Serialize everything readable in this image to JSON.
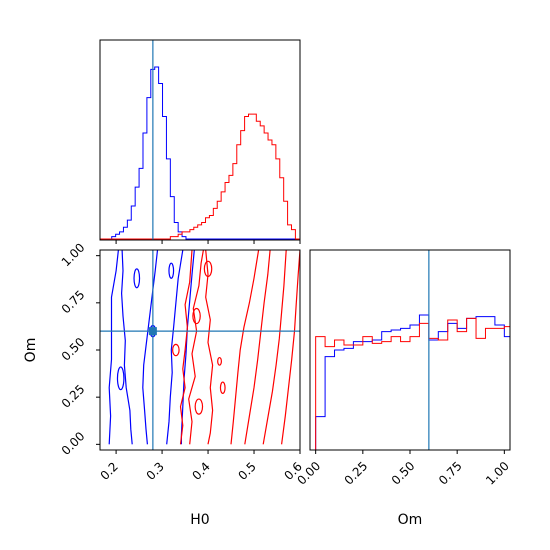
{
  "chart_data": {
    "type": "corner",
    "truth": {
      "H0": 0.28,
      "Om": 0.6
    },
    "series": [
      {
        "color": "#0000ff"
      },
      {
        "color": "#ff0000"
      }
    ],
    "truth_color": "#1f77b4",
    "xlabel_H0": "H0",
    "ylabel_Om": "Om",
    "xlabel_Om": "Om",
    "H0_ticks": [
      "0.2",
      "0.3",
      "0.4",
      "0.5",
      "0.6"
    ],
    "Om_ticks": [
      "0.00",
      "0.25",
      "0.50",
      "0.75",
      "1.00"
    ],
    "H0_range": [
      0.165,
      0.6
    ],
    "Om_range": [
      -0.03,
      1.03
    ],
    "hist_H0": {
      "bin_edges_start": 0.165,
      "bin_width": 0.0085,
      "blue": [
        0,
        0,
        0,
        1,
        2,
        3,
        5,
        8,
        14,
        22,
        30,
        45,
        60,
        72,
        73,
        66,
        52,
        34,
        18,
        7,
        3,
        1,
        0,
        0,
        0,
        0,
        0,
        0,
        0,
        0,
        0,
        0,
        0,
        0,
        0,
        0,
        0,
        0,
        0,
        0,
        0,
        0,
        0,
        0,
        0,
        0,
        0,
        0,
        0,
        0,
        0
      ],
      "red": [
        0,
        0,
        0,
        0,
        0,
        0,
        0,
        0,
        0,
        0,
        0,
        0,
        0,
        0,
        0,
        0,
        0,
        0,
        1,
        1,
        2,
        3,
        3,
        4,
        5,
        6,
        7,
        9,
        10,
        13,
        16,
        20,
        24,
        27,
        32,
        40,
        46,
        52,
        53,
        53,
        50,
        48,
        45,
        42,
        40,
        34,
        26,
        16,
        6,
        4,
        0
      ]
    },
    "hist_Om": {
      "bin_edges_start": 0.0,
      "bin_width": 0.05,
      "blue": [
        20,
        56,
        60,
        61,
        65,
        65,
        66,
        71,
        72,
        73,
        75,
        81,
        66,
        71,
        76,
        73,
        79,
        80,
        80,
        75,
        68,
        57,
        20
      ],
      "red": [
        68,
        62,
        66,
        63,
        63,
        68,
        64,
        65,
        68,
        65,
        68,
        76,
        67,
        66,
        78,
        71,
        79,
        67,
        73,
        73,
        74,
        54,
        0
      ]
    },
    "hist_Om_max": 120
  }
}
